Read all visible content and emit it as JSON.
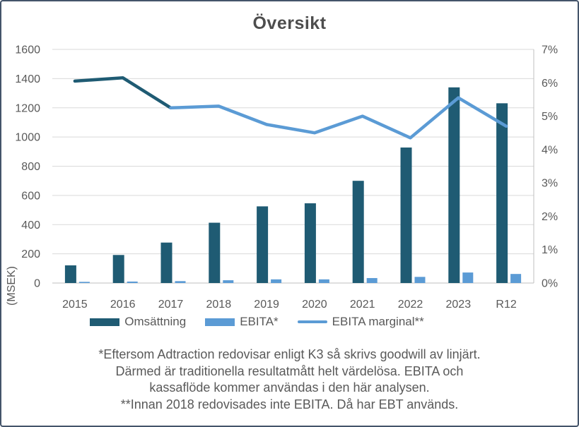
{
  "title": "Översikt",
  "colors": {
    "omsattning": "#1F5B73",
    "ebita": "#5B9BD5",
    "line": "#5B9BD5",
    "line_pre2018": "#1F5B73",
    "grid": "#D9D9D9",
    "axis_line": "#BFBFBF",
    "tick_text": "#595959",
    "title_text": "#4D4D4D",
    "frame_border": "#44546A"
  },
  "legend": {
    "items": [
      {
        "label": "Omsättning",
        "swatch": "bar-dark"
      },
      {
        "label": "EBITA*",
        "swatch": "bar-light"
      },
      {
        "label": "EBITA marginal**",
        "swatch": "line"
      }
    ]
  },
  "footnotes": [
    "*Eftersom Adtraction redovisar enligt K3 så skrivs goodwill av linjärt.",
    "Därmed är traditionella resultatmått helt värdelösa. EBITA och",
    "kassaflöde kommer användas i den här analysen.",
    "**Innan 2018 redovisades inte EBITA. Då har EBT används."
  ],
  "chart_data": {
    "type": "combo",
    "categories": [
      "2015",
      "2016",
      "2017",
      "2018",
      "2019",
      "2020",
      "2021",
      "2022",
      "2023",
      "R12"
    ],
    "series": [
      {
        "name": "Omsättning",
        "type": "bar",
        "axis": "left",
        "color": "#1F5B73",
        "values": [
          121,
          192,
          277,
          413,
          525,
          546,
          700,
          928,
          1340,
          1231
        ]
      },
      {
        "name": "EBITA*",
        "type": "bar",
        "axis": "left",
        "color": "#5B9BD5",
        "values": [
          8,
          10,
          13,
          19,
          25,
          25,
          34,
          42,
          72,
          62
        ]
      },
      {
        "name": "EBITA marginal**",
        "type": "line",
        "axis": "right",
        "color": "#5B9BD5",
        "pre2018_color": "#1F5B73",
        "dark_segment_count": 2,
        "values_percent": [
          6.05,
          6.15,
          5.25,
          5.3,
          4.75,
          4.5,
          5.0,
          4.35,
          5.55,
          4.7
        ]
      }
    ],
    "left_axis": {
      "title": "(MSEK)",
      "min": 0,
      "max": 1600,
      "step": 200,
      "tick_labels": [
        "1600",
        "1400",
        "1200",
        "1000",
        "800",
        "600",
        "400",
        "200",
        "0"
      ]
    },
    "right_axis": {
      "min": 0,
      "max": 7,
      "step": 1,
      "tick_labels": [
        "7%",
        "6%",
        "5%",
        "4%",
        "3%",
        "2%",
        "1%",
        "0%"
      ]
    },
    "grid": true,
    "legend_position": "bottom"
  }
}
